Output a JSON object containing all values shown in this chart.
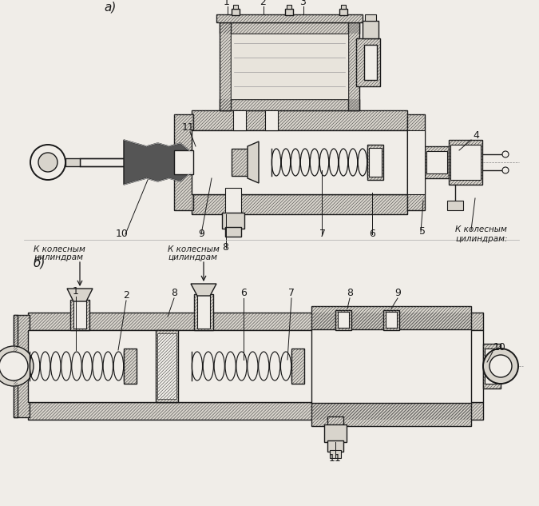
{
  "bg_color": "#f0ede8",
  "line_color": "#1a1a1a",
  "hatch_fc": "#d8d4cc",
  "clear_fc": "#f0ede8",
  "white_fc": "#e8e5e0",
  "title_a": "а)",
  "title_b": "б)",
  "label_k1": "К колесным",
  "label_k2": "цилиндрам",
  "label_k_right": "К колесным",
  "label_k_right2": "цилиндрам:",
  "font_size_labels": 8.0,
  "font_size_numbers": 9.0,
  "font_size_title": 11.0
}
